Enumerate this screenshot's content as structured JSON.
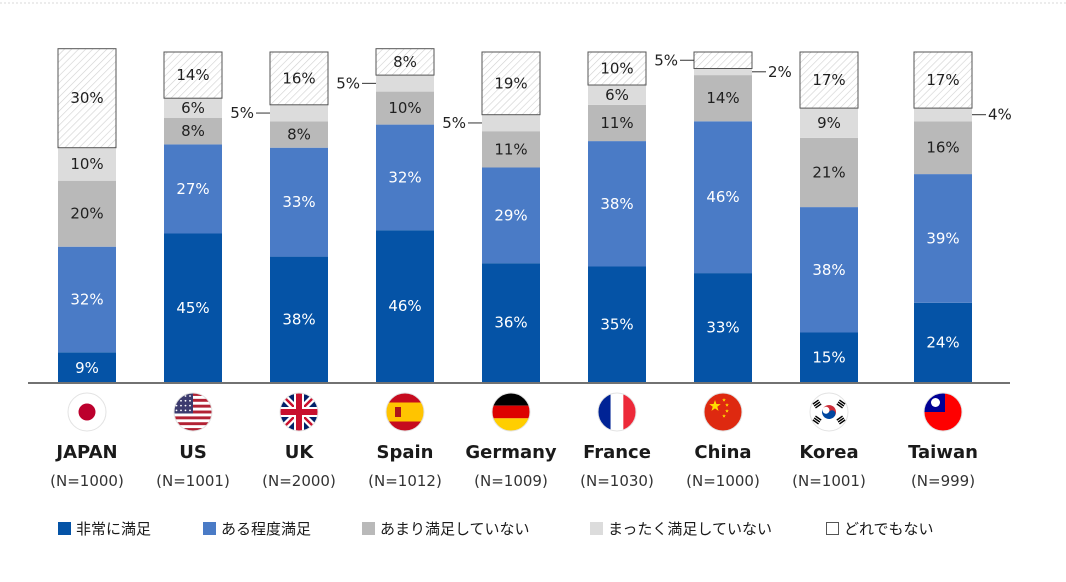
{
  "chart_data": {
    "type": "bar",
    "stacked": true,
    "percent": true,
    "categories": [
      "JAPAN",
      "US",
      "UK",
      "Spain",
      "Germany",
      "France",
      "China",
      "Korea",
      "Taiwan"
    ],
    "sample_sizes": [
      "(N=1000)",
      "(N=1001)",
      "(N=2000)",
      "(N=1012)",
      "(N=1009)",
      "(N=1030)",
      "(N=1000)",
      "(N=1001)",
      "(N=999)"
    ],
    "series": [
      {
        "name": "非常に満足",
        "color": "#0553a6",
        "values": [
          9,
          45,
          38,
          46,
          36,
          35,
          33,
          15,
          24
        ]
      },
      {
        "name": "ある程度満足",
        "color": "#4a7bc6",
        "values": [
          32,
          27,
          33,
          32,
          29,
          38,
          46,
          38,
          39
        ]
      },
      {
        "name": "あまり満足していない",
        "color": "#b9b9b9",
        "values": [
          20,
          8,
          8,
          10,
          11,
          11,
          14,
          21,
          16
        ]
      },
      {
        "name": "まったく満足していない",
        "color": "#dcdcdc",
        "values": [
          10,
          6,
          5,
          5,
          5,
          6,
          2,
          9,
          4
        ]
      },
      {
        "name": "どれでもない",
        "color": "#ffffff",
        "values": [
          30,
          14,
          16,
          8,
          19,
          10,
          5,
          17,
          17
        ]
      }
    ],
    "legend_position": "bottom",
    "grid": false,
    "value_suffix": "%",
    "flags": [
      "flag-japan-icon",
      "flag-us-icon",
      "flag-uk-icon",
      "flag-spain-icon",
      "flag-germany-icon",
      "flag-france-icon",
      "flag-china-icon",
      "flag-korea-icon",
      "flag-taiwan-icon"
    ]
  }
}
